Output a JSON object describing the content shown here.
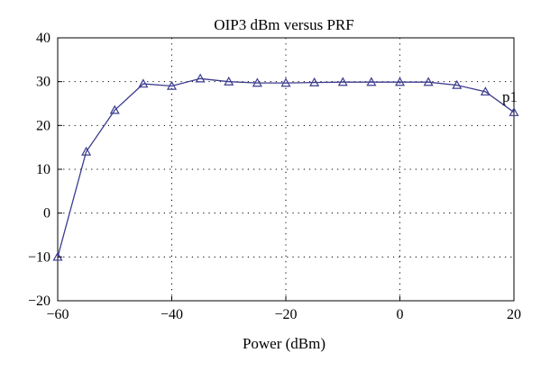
{
  "chart_data": {
    "type": "line",
    "title": "OIP3 dBm versus PRF",
    "xlabel": "Power (dBm)",
    "ylabel": "",
    "xlim": [
      -60,
      20
    ],
    "ylim": [
      -20,
      40
    ],
    "xticks": [
      -60,
      -40,
      -20,
      0,
      20
    ],
    "yticks": [
      -20,
      -10,
      0,
      10,
      20,
      30,
      40
    ],
    "xtick_labels": [
      "−60",
      "−40",
      "−20",
      "0",
      "20"
    ],
    "ytick_labels": [
      "−20",
      "−10",
      "0",
      "10",
      "20",
      "30",
      "40"
    ],
    "grid": true,
    "annotation": "p1",
    "series": [
      {
        "marker": "triangle",
        "color": "#3b3b8f",
        "x": [
          -60,
          -55,
          -50,
          -45,
          -40,
          -35,
          -30,
          -25,
          -20,
          -15,
          -10,
          -5,
          0,
          5,
          10,
          15,
          20
        ],
        "y": [
          -10,
          14,
          23.5,
          29.5,
          29,
          30.7,
          30,
          29.7,
          29.7,
          29.8,
          29.9,
          29.9,
          29.9,
          29.9,
          29.2,
          27.7,
          23
        ]
      }
    ]
  }
}
